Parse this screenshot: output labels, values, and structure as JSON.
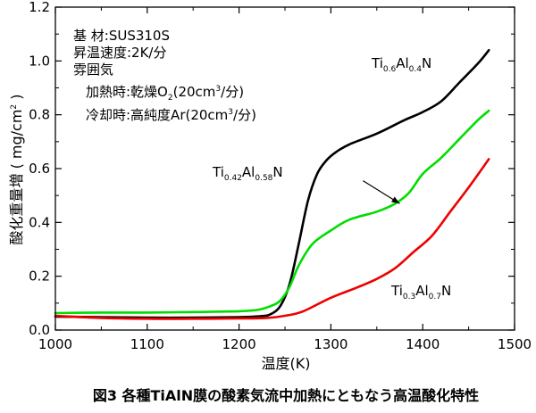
{
  "chart_data": {
    "type": "line",
    "caption": "図3  各種TiAlN膜の酸素気流中加熱にともなう高温酸化特性",
    "xlabel": "温度(K)",
    "ylabel": "酸化重量増 ( mg/cm² )",
    "ylabel_main": "酸化重量増 ( mg/cm",
    "ylabel_sup": "2",
    "ylabel_close": " )",
    "xlim": [
      1000,
      1500
    ],
    "ylim": [
      0,
      1.2
    ],
    "xticks": [
      "1000",
      "1100",
      "1200",
      "1300",
      "1400",
      "1500"
    ],
    "yticks": [
      "0.0",
      "0.2",
      "0.4",
      "0.6",
      "0.8",
      "1.0",
      "1.2"
    ],
    "xtick_values": [
      1000,
      1100,
      1200,
      1300,
      1400,
      1500
    ],
    "ytick_values": [
      0.0,
      0.2,
      0.4,
      0.6,
      0.8,
      1.0,
      1.2
    ],
    "notes": {
      "substrate": "基  材:SUS310S",
      "rate": "昇温速度:2K/分",
      "atmosphere": "雰囲気",
      "heating_pre": "加熱時:乾燥O",
      "heating_sub": "2",
      "heating_post": "(20cm",
      "heating_sup": "3",
      "heating_end": "/分)",
      "cooling_pre": "冷却時:高純度Ar(20cm",
      "cooling_sup": "3",
      "cooling_end": "/分)"
    },
    "series": [
      {
        "key": "ti06",
        "color": "#000000",
        "label": {
          "a": "Ti",
          "a_sub": "0.6",
          "b": "Al",
          "b_sub": "0.4",
          "c": "N"
        },
        "x": [
          1000,
          1050,
          1100,
          1150,
          1200,
          1225,
          1235,
          1245,
          1255,
          1265,
          1275,
          1285,
          1295,
          1305,
          1320,
          1350,
          1380,
          1400,
          1420,
          1440,
          1460,
          1472
        ],
        "y": [
          0.05,
          0.048,
          0.046,
          0.046,
          0.048,
          0.052,
          0.06,
          0.09,
          0.17,
          0.32,
          0.48,
          0.58,
          0.63,
          0.66,
          0.69,
          0.73,
          0.78,
          0.81,
          0.85,
          0.92,
          0.99,
          1.04
        ]
      },
      {
        "key": "ti042",
        "color": "#00dd00",
        "label": {
          "a": "Ti",
          "a_sub": "0.42",
          "b": "Al",
          "b_sub": "0.58",
          "c": "N"
        },
        "x": [
          1000,
          1050,
          1100,
          1150,
          1200,
          1220,
          1235,
          1245,
          1255,
          1265,
          1280,
          1300,
          1320,
          1350,
          1370,
          1385,
          1400,
          1420,
          1440,
          1460,
          1472
        ],
        "y": [
          0.063,
          0.065,
          0.065,
          0.067,
          0.07,
          0.075,
          0.09,
          0.11,
          0.16,
          0.24,
          0.32,
          0.37,
          0.41,
          0.44,
          0.47,
          0.51,
          0.58,
          0.64,
          0.71,
          0.78,
          0.815
        ]
      },
      {
        "key": "ti03",
        "color": "#ee0000",
        "label": {
          "a": "Ti",
          "a_sub": "0.3",
          "b": "Al",
          "b_sub": "0.7",
          "c": "N"
        },
        "x": [
          1000,
          1050,
          1100,
          1150,
          1200,
          1230,
          1250,
          1270,
          1300,
          1330,
          1350,
          1370,
          1390,
          1410,
          1430,
          1450,
          1472
        ],
        "y": [
          0.053,
          0.045,
          0.042,
          0.042,
          0.043,
          0.045,
          0.053,
          0.07,
          0.12,
          0.16,
          0.19,
          0.23,
          0.29,
          0.35,
          0.44,
          0.53,
          0.635
        ]
      }
    ],
    "arrow": {
      "from": [
        1335,
        0.555
      ],
      "to": [
        1375,
        0.47
      ]
    }
  }
}
